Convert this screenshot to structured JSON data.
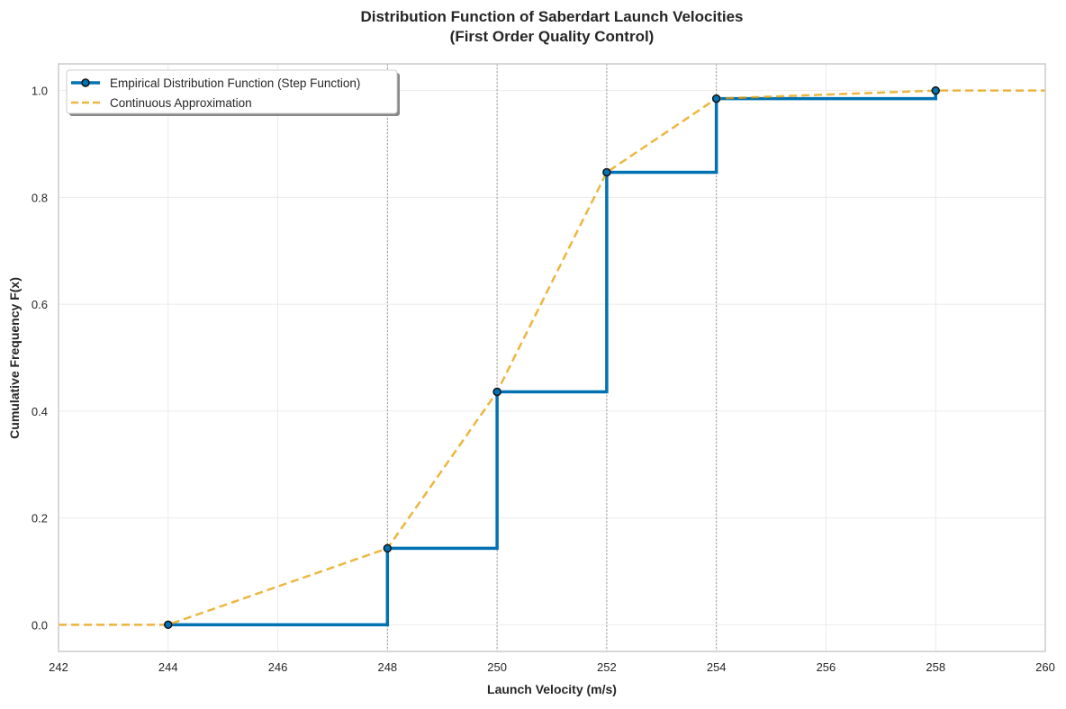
{
  "chart_data": {
    "type": "line",
    "title": "Distribution Function of Saberdart Launch Velocities",
    "subtitle": "(First Order Quality Control)",
    "xlabel": "Launch Velocity (m/s)",
    "ylabel": "Cumulative Frequency F(x)",
    "xlim": [
      242,
      260
    ],
    "ylim": [
      -0.05,
      1.05
    ],
    "xticks": [
      242,
      244,
      246,
      248,
      250,
      252,
      254,
      256,
      258,
      260
    ],
    "yticks": [
      0.0,
      0.2,
      0.4,
      0.6,
      0.8,
      1.0
    ],
    "ytick_labels": [
      "0.0",
      "0.2",
      "0.4",
      "0.6",
      "0.8",
      "1.0"
    ],
    "grid": true,
    "vertical_reference_lines": [
      248,
      250,
      252,
      254
    ],
    "legend_position": "top-left",
    "series": [
      {
        "name": "Empirical Distribution Function (Step Function)",
        "style": "step-post",
        "color": "#0072b2",
        "markers": true,
        "x": [
          244,
          248,
          250,
          252,
          254,
          258
        ],
        "y": [
          0.0,
          0.143,
          0.436,
          0.847,
          0.985,
          1.0
        ]
      },
      {
        "name": "Continuous Approximation",
        "style": "dashed",
        "color": "#e69f00",
        "x": [
          242,
          244,
          248,
          250,
          252,
          254,
          258,
          260
        ],
        "y": [
          0.0,
          0.0,
          0.143,
          0.436,
          0.847,
          0.985,
          1.0,
          1.0
        ]
      }
    ]
  }
}
